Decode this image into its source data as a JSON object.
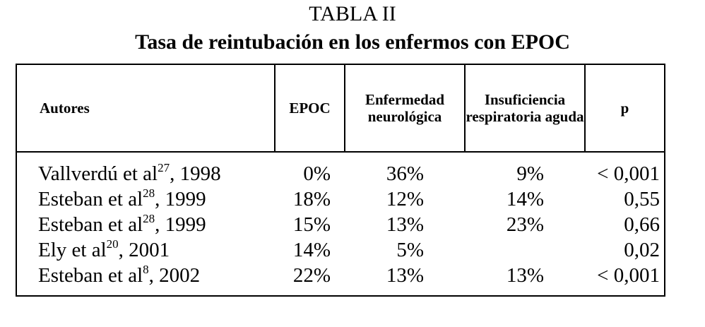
{
  "header": {
    "title": "TABLA II",
    "subtitle": "Tasa de reintubación en los enfermos con EPOC"
  },
  "table": {
    "columns": [
      "Autores",
      "EPOC",
      "Enfermedad neurológica",
      "Insuficiencia respiratoria aguda",
      "p"
    ],
    "rows": [
      {
        "author": "Vallverdú et al",
        "ref": "27",
        "year": ", 1998",
        "cells": [
          "0%",
          "36%",
          "9%",
          "< 0,001"
        ]
      },
      {
        "author": "Esteban et al",
        "ref": "28",
        "year": ", 1999",
        "cells": [
          "18%",
          "12%",
          "14%",
          "0,55"
        ]
      },
      {
        "author": "Esteban et al",
        "ref": "28",
        "year": ", 1999",
        "cells": [
          "15%",
          "13%",
          "23%",
          "0,66"
        ]
      },
      {
        "author": "Ely et al",
        "ref": "20",
        "year": ", 2001",
        "cells": [
          "14%",
          "5%",
          null,
          "0,02"
        ]
      },
      {
        "author": "Esteban et al",
        "ref": "8",
        "year": ", 2002",
        "cells": [
          "22%",
          "13%",
          "13%",
          "< 0,001"
        ]
      }
    ]
  }
}
